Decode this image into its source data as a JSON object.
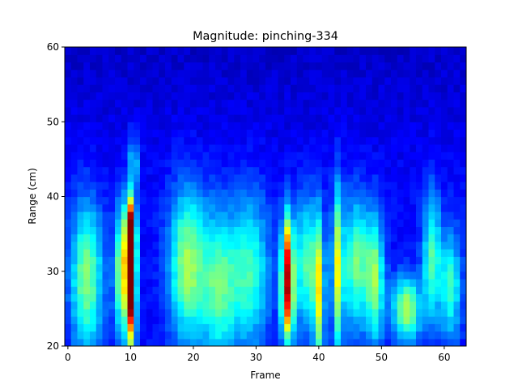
{
  "chart_data": {
    "type": "heatmap",
    "title": "Magnitude: pinching-334",
    "xlabel": "Frame",
    "ylabel": "Range (cm)",
    "xlim": [
      -0.5,
      63.5
    ],
    "ylim": [
      20,
      60
    ],
    "x_ticks": [
      0,
      10,
      20,
      30,
      40,
      50,
      60
    ],
    "y_ticks": [
      20,
      30,
      40,
      50,
      60
    ],
    "colormap": "jet",
    "grid": false,
    "legend": "none",
    "frames": 64,
    "range_bins": 40,
    "background_level": 0.12,
    "noise_amplitude": 0.05,
    "features": [
      {
        "frame": 10,
        "range": 28,
        "frame_width": 0.55,
        "range_width": 5.5,
        "peak": 0.95
      },
      {
        "frame": 10,
        "range": 35,
        "frame_width": 0.55,
        "range_width": 3.5,
        "peak": 0.72
      },
      {
        "frame": 35,
        "range": 26,
        "frame_width": 0.7,
        "range_width": 4.0,
        "peak": 0.62
      },
      {
        "frame": 35,
        "range": 33,
        "frame_width": 0.6,
        "range_width": 4.0,
        "peak": 0.5
      },
      {
        "frame": 3,
        "range": 29,
        "frame_width": 1.8,
        "range_width": 7.0,
        "peak": 0.38
      },
      {
        "frame": 8.5,
        "range": 30,
        "frame_width": 0.8,
        "range_width": 6.0,
        "peak": 0.4
      },
      {
        "frame": 19,
        "range": 31,
        "frame_width": 2.0,
        "range_width": 7.0,
        "peak": 0.4
      },
      {
        "frame": 24,
        "range": 28,
        "frame_width": 2.0,
        "range_width": 7.0,
        "peak": 0.33
      },
      {
        "frame": 29,
        "range": 30,
        "frame_width": 2.2,
        "range_width": 7.0,
        "peak": 0.3
      },
      {
        "frame": 38,
        "range": 31,
        "frame_width": 1.5,
        "range_width": 6.0,
        "peak": 0.32
      },
      {
        "frame": 40,
        "range": 27,
        "frame_width": 0.6,
        "range_width": 7.0,
        "peak": 0.42
      },
      {
        "frame": 43,
        "range": 30,
        "frame_width": 0.6,
        "range_width": 8.0,
        "peak": 0.44
      },
      {
        "frame": 46,
        "range": 31,
        "frame_width": 1.5,
        "range_width": 6.0,
        "peak": 0.36
      },
      {
        "frame": 49,
        "range": 29,
        "frame_width": 1.0,
        "range_width": 6.0,
        "peak": 0.36
      },
      {
        "frame": 54,
        "range": 25,
        "frame_width": 1.6,
        "range_width": 3.0,
        "peak": 0.42
      },
      {
        "frame": 58,
        "range": 32,
        "frame_width": 1.0,
        "range_width": 6.0,
        "peak": 0.32
      },
      {
        "frame": 61,
        "range": 28,
        "frame_width": 1.2,
        "range_width": 5.0,
        "peak": 0.3
      },
      {
        "frame": 10.5,
        "range": 45,
        "frame_width": 0.6,
        "range_width": 2.5,
        "peak": 0.22
      }
    ]
  }
}
